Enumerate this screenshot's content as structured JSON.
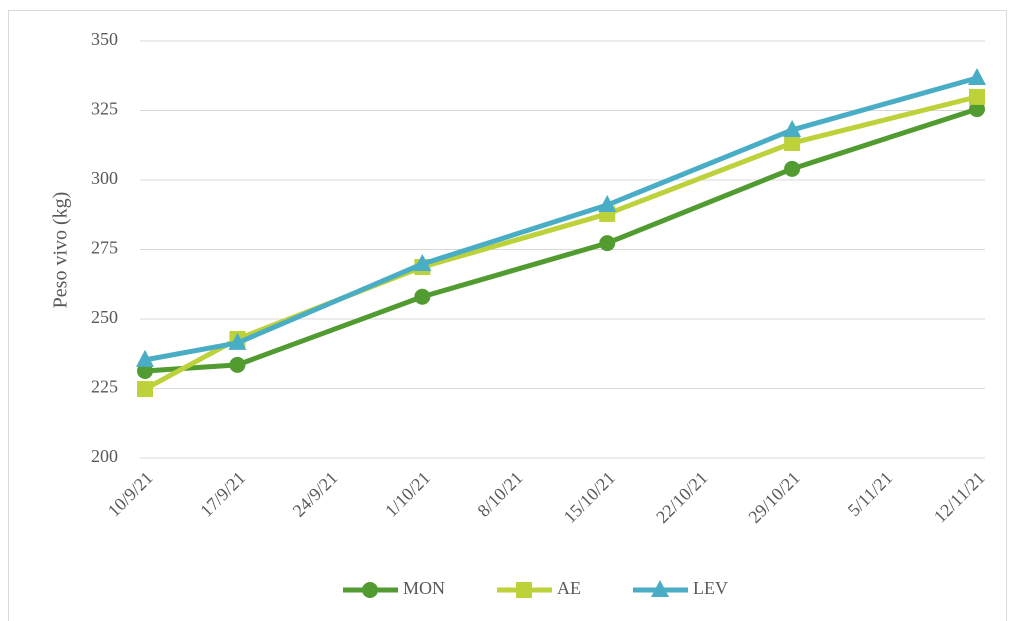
{
  "chart_data": {
    "type": "line",
    "y_label": "Peso vivo (kg)",
    "categories": [
      "10/9/21",
      "17/9/21",
      "24/9/21",
      "1/10/21",
      "8/10/21",
      "15/10/21",
      "22/10/21",
      "29/10/21",
      "5/11/21",
      "12/11/21"
    ],
    "series": [
      {
        "name": "MON",
        "color": "#519b30",
        "marker": "circle",
        "values": [
          231.3,
          233.5,
          null,
          258,
          null,
          277.3,
          null,
          304,
          null,
          325.5
        ]
      },
      {
        "name": "AE",
        "color": "#bdd13a",
        "marker": "square",
        "values": [
          224.8,
          242.8,
          null,
          268.7,
          null,
          287.8,
          null,
          313.3,
          null,
          329.9
        ]
      },
      {
        "name": "LEV",
        "color": "#4aadc6",
        "marker": "triangle",
        "values": [
          235.3,
          241.4,
          null,
          269.8,
          null,
          291,
          null,
          318,
          null,
          336.7
        ]
      }
    ],
    "span_gaps": true,
    "ylim": [
      200,
      350
    ],
    "yticks": [
      200,
      225,
      250,
      275,
      300,
      325,
      350
    ],
    "grid": true,
    "legend": "bottom"
  }
}
